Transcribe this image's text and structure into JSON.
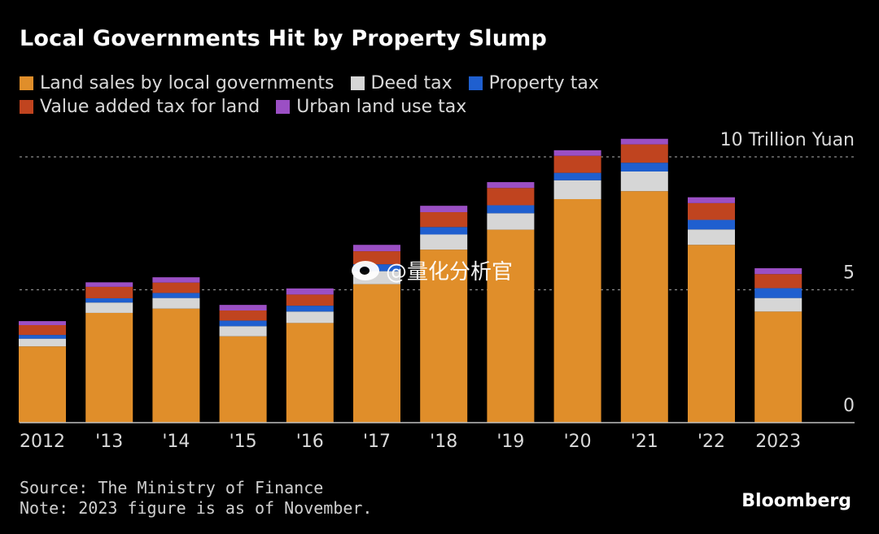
{
  "chart_data": {
    "type": "bar",
    "stacked": true,
    "title": "Local Governments Hit by Property Slump",
    "ylabel_unit": "10 Trillion Yuan",
    "ylim": [
      0,
      10
    ],
    "yticks": [
      {
        "value": 10,
        "label": "10 Trillion Yuan"
      },
      {
        "value": 5,
        "label": "5"
      },
      {
        "value": 0,
        "label": "0"
      }
    ],
    "categories": [
      "2012",
      "'13",
      "'14",
      "'15",
      "'16",
      "'17",
      "'18",
      "'19",
      "'20",
      "'21",
      "'22",
      "2023"
    ],
    "series": [
      {
        "name": "Land sales by local governments",
        "color": "#e08e2a",
        "values": [
          2.87,
          4.13,
          4.29,
          3.25,
          3.75,
          5.21,
          6.51,
          7.26,
          8.41,
          8.71,
          6.69,
          4.18
        ]
      },
      {
        "name": "Deed tax",
        "color": "#d6d6d6",
        "values": [
          0.29,
          0.39,
          0.4,
          0.38,
          0.43,
          0.49,
          0.57,
          0.62,
          0.71,
          0.74,
          0.58,
          0.51
        ]
      },
      {
        "name": "Property tax",
        "color": "#1f5fcf",
        "values": [
          0.14,
          0.16,
          0.19,
          0.21,
          0.22,
          0.26,
          0.28,
          0.3,
          0.28,
          0.33,
          0.36,
          0.37
        ]
      },
      {
        "name": "Value added tax for land",
        "color": "#c0441f",
        "values": [
          0.37,
          0.43,
          0.39,
          0.38,
          0.42,
          0.49,
          0.56,
          0.65,
          0.64,
          0.69,
          0.63,
          0.53
        ]
      },
      {
        "name": "Urban land use tax",
        "color": "#9b4fc4",
        "values": [
          0.15,
          0.17,
          0.2,
          0.21,
          0.23,
          0.24,
          0.24,
          0.22,
          0.21,
          0.21,
          0.22,
          0.22
        ]
      }
    ]
  },
  "legend": [
    {
      "label": "Land sales by local governments",
      "color": "#e08e2a"
    },
    {
      "label": "Deed tax",
      "color": "#d6d6d6"
    },
    {
      "label": "Property tax",
      "color": "#1f5fcf"
    },
    {
      "label": "Value added tax for land",
      "color": "#c0441f"
    },
    {
      "label": "Urban land use tax",
      "color": "#9b4fc4"
    }
  ],
  "footer": {
    "source": "Source: The Ministry of Finance",
    "note": "Note: 2023 figure is as of November."
  },
  "brand": "Bloomberg",
  "watermark": "@量化分析官",
  "colors": {
    "background": "#000000",
    "gridline": "#8c8c8c",
    "axis": "#bfbfbf"
  }
}
